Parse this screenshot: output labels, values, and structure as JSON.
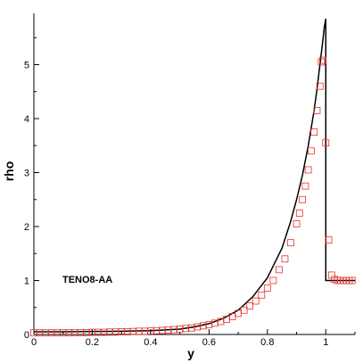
{
  "chart_data": {
    "type": "line",
    "xlabel": "y",
    "ylabel": "rho",
    "annotation": "TENO8-AA",
    "xlim": [
      0,
      1.1
    ],
    "ylim": [
      0,
      5.95
    ],
    "x_ticks": [
      0,
      0.2,
      0.4,
      0.6,
      0.8,
      1
    ],
    "x_tick_labels": [
      "0",
      "0.2",
      "0.4",
      "0.6",
      "0.8",
      "1"
    ],
    "y_ticks": [
      0,
      1,
      2,
      3,
      4,
      5
    ],
    "y_tick_labels": [
      "0",
      "1",
      "2",
      "3",
      "4",
      "5"
    ],
    "grid": false,
    "series": [
      {
        "style": "line",
        "color": "#000000",
        "x": [
          0,
          0.1,
          0.2,
          0.3,
          0.4,
          0.5,
          0.55,
          0.6,
          0.65,
          0.7,
          0.75,
          0.8,
          0.85,
          0.88,
          0.9,
          0.92,
          0.94,
          0.96,
          0.97,
          0.98,
          0.99,
          0.995,
          1.0,
          1.0,
          1.02,
          1.05,
          1.1
        ],
        "y": [
          0.05,
          0.05,
          0.055,
          0.06,
          0.07,
          0.1,
          0.14,
          0.2,
          0.3,
          0.45,
          0.7,
          1.05,
          1.6,
          2.1,
          2.5,
          2.95,
          3.5,
          4.15,
          4.55,
          5.0,
          5.45,
          5.7,
          5.85,
          1.0,
          1.0,
          1.0,
          1.0
        ]
      },
      {
        "style": "square-markers",
        "color": "#e8302a",
        "x": [
          0,
          0.02,
          0.04,
          0.06,
          0.08,
          0.1,
          0.12,
          0.14,
          0.16,
          0.18,
          0.2,
          0.22,
          0.24,
          0.26,
          0.28,
          0.3,
          0.32,
          0.34,
          0.36,
          0.38,
          0.4,
          0.42,
          0.44,
          0.46,
          0.48,
          0.5,
          0.52,
          0.54,
          0.56,
          0.58,
          0.6,
          0.62,
          0.64,
          0.66,
          0.68,
          0.7,
          0.72,
          0.74,
          0.76,
          0.78,
          0.8,
          0.82,
          0.84,
          0.86,
          0.88,
          0.9,
          0.91,
          0.92,
          0.93,
          0.94,
          0.95,
          0.96,
          0.97,
          0.98,
          0.985,
          0.99,
          1.0,
          1.01,
          1.02,
          1.03,
          1.04,
          1.05,
          1.06,
          1.07,
          1.08,
          1.09
        ],
        "y": [
          0.03,
          0.03,
          0.03,
          0.03,
          0.03,
          0.03,
          0.03,
          0.035,
          0.035,
          0.035,
          0.04,
          0.04,
          0.04,
          0.045,
          0.045,
          0.05,
          0.05,
          0.055,
          0.06,
          0.06,
          0.065,
          0.07,
          0.075,
          0.08,
          0.09,
          0.1,
          0.11,
          0.12,
          0.14,
          0.16,
          0.18,
          0.21,
          0.24,
          0.28,
          0.33,
          0.39,
          0.45,
          0.53,
          0.62,
          0.73,
          0.86,
          1.0,
          1.2,
          1.4,
          1.7,
          2.05,
          2.25,
          2.5,
          2.75,
          3.05,
          3.4,
          3.75,
          4.15,
          4.6,
          5.05,
          5.08,
          3.55,
          1.75,
          1.1,
          1.02,
          1.0,
          1.0,
          1.0,
          1.0,
          1.0,
          1.0
        ]
      }
    ]
  }
}
